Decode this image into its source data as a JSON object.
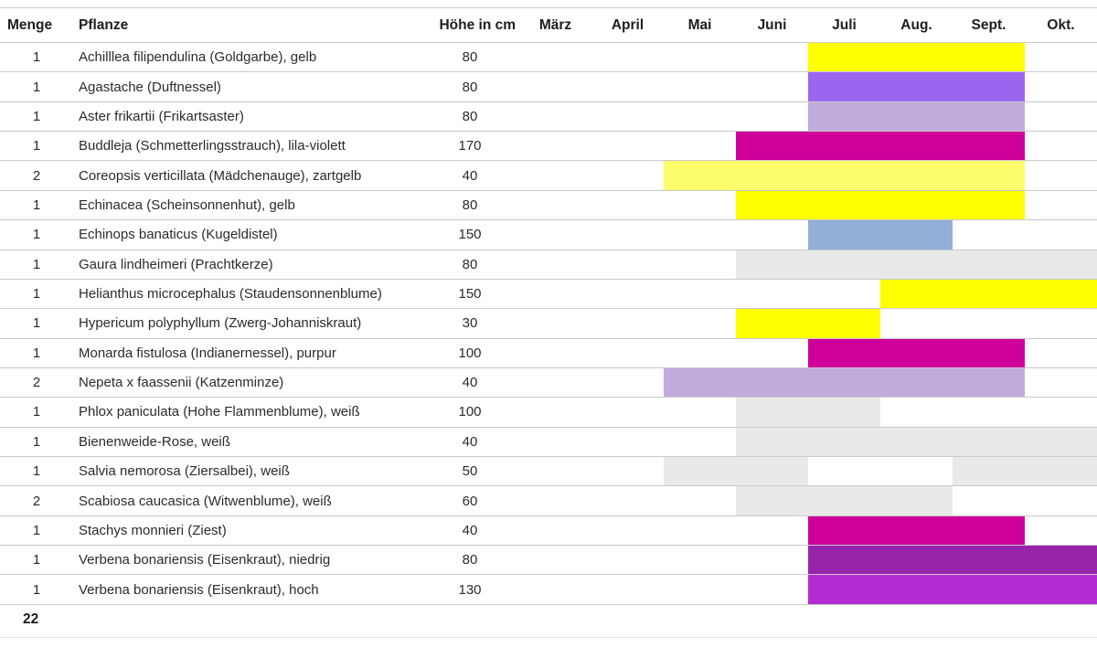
{
  "table": {
    "columns": {
      "menge": "Menge",
      "pflanze": "Pflanze",
      "hoehe": "Höhe in cm"
    },
    "months": [
      "März",
      "April",
      "Mai",
      "Juni",
      "Juli",
      "Aug.",
      "Sept.",
      "Okt."
    ],
    "rows": [
      {
        "menge": "1",
        "pflanze": "Achilllea filipendulina (Goldgarbe), gelb",
        "hoehe": "80",
        "bars": [
          {
            "from": "Juli",
            "to": "Sept.",
            "color": "#FFFF00"
          }
        ]
      },
      {
        "menge": "1",
        "pflanze": "Agastache (Duftnessel)",
        "hoehe": "80",
        "bars": [
          {
            "from": "Juli",
            "to": "Sept.",
            "color": "#9A66F0"
          }
        ]
      },
      {
        "menge": "1",
        "pflanze": "Aster frikartii (Frikartsaster)",
        "hoehe": "80",
        "bars": [
          {
            "from": "Juli",
            "to": "Sept.",
            "color": "#C1AADC"
          }
        ]
      },
      {
        "menge": "1",
        "pflanze": "Buddleja (Schmetterlingsstrauch), lila-violett",
        "hoehe": "170",
        "bars": [
          {
            "from": "Juni",
            "to": "Sept.",
            "color": "#CE0099"
          }
        ]
      },
      {
        "menge": "2",
        "pflanze": "Coreopsis verticillata (Mädchenauge), zartgelb",
        "hoehe": "40",
        "bars": [
          {
            "from": "Mai",
            "to": "Sept.",
            "color": "#FCFC6C"
          }
        ]
      },
      {
        "menge": "1",
        "pflanze": "Echinacea (Scheinsonnenhut), gelb",
        "hoehe": "80",
        "bars": [
          {
            "from": "Juni",
            "to": "Sept.",
            "color": "#FFFF00"
          }
        ]
      },
      {
        "menge": "1",
        "pflanze": "Echinops banaticus (Kugeldistel)",
        "hoehe": "150",
        "bars": [
          {
            "from": "Juli",
            "to": "Aug.",
            "color": "#91AFD7"
          }
        ]
      },
      {
        "menge": "1",
        "pflanze": "Gaura lindheimeri (Prachtkerze)",
        "hoehe": "80",
        "bars": [
          {
            "from": "Juni",
            "to": "Okt.",
            "color": "#E9E9E9"
          }
        ]
      },
      {
        "menge": "1",
        "pflanze": "Helianthus microcephalus (Staudensonnenblume)",
        "hoehe": "150",
        "bars": [
          {
            "from": "Aug.",
            "to": "Okt.",
            "color": "#FFFF00"
          }
        ]
      },
      {
        "menge": "1",
        "pflanze": "Hypericum polyphyllum (Zwerg-Johanniskraut)",
        "hoehe": "30",
        "bars": [
          {
            "from": "Juni",
            "to": "Juli",
            "color": "#FFFF00"
          }
        ]
      },
      {
        "menge": "1",
        "pflanze": "Monarda fistulosa (Indianernessel), purpur",
        "hoehe": "100",
        "bars": [
          {
            "from": "Juli",
            "to": "Sept.",
            "color": "#CE0099"
          }
        ]
      },
      {
        "menge": "2",
        "pflanze": "Nepeta x faassenii (Katzenminze)",
        "hoehe": "40",
        "bars": [
          {
            "from": "Mai",
            "to": "Sept.",
            "color": "#C1AADC"
          }
        ]
      },
      {
        "menge": "1",
        "pflanze": "Phlox paniculata (Hohe Flammenblume), weiß",
        "hoehe": "100",
        "bars": [
          {
            "from": "Juni",
            "to": "Juli",
            "color": "#E9E9E9"
          }
        ]
      },
      {
        "menge": "1",
        "pflanze": "Bienenweide-Rose, weiß",
        "hoehe": "40",
        "bars": [
          {
            "from": "Juni",
            "to": "Okt.",
            "color": "#E9E9E9"
          }
        ]
      },
      {
        "menge": "1",
        "pflanze": "Salvia nemorosa (Ziersalbei), weiß",
        "hoehe": "50",
        "bars": [
          {
            "from": "Mai",
            "to": "Juni",
            "color": "#E9E9E9"
          },
          {
            "from": "Sept.",
            "to": "Okt.",
            "color": "#E9E9E9"
          }
        ]
      },
      {
        "menge": "2",
        "pflanze": "Scabiosa caucasica (Witwenblume), weiß",
        "hoehe": "60",
        "bars": [
          {
            "from": "Juni",
            "to": "Aug.",
            "color": "#E9E9E9"
          }
        ]
      },
      {
        "menge": "1",
        "pflanze": "Stachys monnieri (Ziest)",
        "hoehe": "40",
        "bars": [
          {
            "from": "Juli",
            "to": "Sept.",
            "color": "#CE0099"
          }
        ]
      },
      {
        "menge": "1",
        "pflanze": "Verbena bonariensis (Eisenkraut), niedrig",
        "hoehe": "80",
        "bars": [
          {
            "from": "Juli",
            "to": "Okt.",
            "color": "#9824AC"
          }
        ]
      },
      {
        "menge": "1",
        "pflanze": "Verbena bonariensis (Eisenkraut), hoch",
        "hoehe": "130",
        "bars": [
          {
            "from": "Juli",
            "to": "Okt.",
            "color": "#B42BD2"
          }
        ]
      }
    ],
    "total": "22"
  },
  "colors": {
    "grid_line": "#c9c9c9",
    "yellow": "#FFFF00",
    "pale_yellow": "#FCFC6C",
    "violet": "#9A66F0",
    "lavender": "#C1AADC",
    "magenta": "#CE0099",
    "blue": "#91AFD7",
    "gray": "#E9E9E9",
    "dark_purple": "#9824AC",
    "bright_purple": "#B42BD2"
  }
}
